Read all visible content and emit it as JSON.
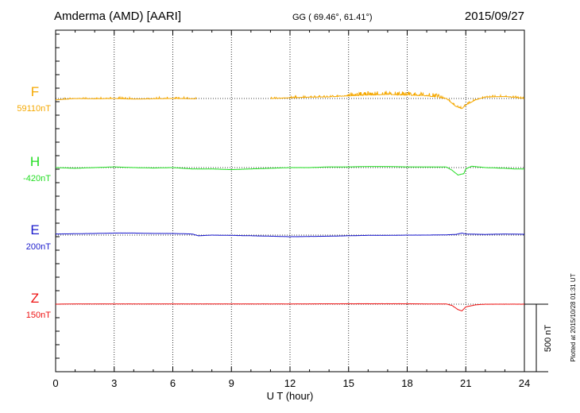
{
  "header": {
    "station": "Amderma (AMD)  [AARI]",
    "coords": "GG ( 69.46°,  61.41°)",
    "date": "2015/09/27"
  },
  "footer_note": "Plotted at 2015/10/28 01:31  UT",
  "scale_label": "500 nT",
  "colors": {
    "F": "#f5a800",
    "H": "#22dd22",
    "E": "#1a1acc",
    "Z": "#ee1111",
    "axis": "#000000"
  },
  "chart_data": {
    "type": "line",
    "xlabel": "U T (hour)",
    "xlim": [
      0,
      24
    ],
    "x_ticks": [
      0,
      3,
      6,
      9,
      12,
      15,
      18,
      21,
      24
    ],
    "x_tick_labels": [
      "0",
      "3",
      "6",
      "9",
      "12",
      "15",
      "18",
      "21",
      "24"
    ],
    "y_unit": "nT",
    "y_scale_bar_nT": 500,
    "series": [
      {
        "name": "F",
        "baseline_label": "59110nT",
        "baseline_nT": 59110,
        "gaps": [
          [
            7.2,
            11.0
          ]
        ],
        "points": [
          [
            0,
            -10
          ],
          [
            0.5,
            -5
          ],
          [
            1,
            0
          ],
          [
            2,
            -2
          ],
          [
            3,
            0
          ],
          [
            4,
            -4
          ],
          [
            5,
            -2
          ],
          [
            6,
            0
          ],
          [
            7.1,
            -2
          ],
          [
            11.0,
            0
          ],
          [
            12,
            5
          ],
          [
            13,
            10
          ],
          [
            14,
            12
          ],
          [
            15,
            20
          ],
          [
            16,
            25
          ],
          [
            17,
            30
          ],
          [
            18,
            25
          ],
          [
            19,
            20
          ],
          [
            20,
            0
          ],
          [
            20.5,
            -60
          ],
          [
            20.8,
            -75
          ],
          [
            21.0,
            -50
          ],
          [
            21.5,
            -10
          ],
          [
            22,
            10
          ],
          [
            23,
            15
          ],
          [
            24,
            0
          ]
        ]
      },
      {
        "name": "H",
        "baseline_label": "-420nT",
        "baseline_nT": -420,
        "gaps": [],
        "points": [
          [
            0,
            0
          ],
          [
            1,
            -5
          ],
          [
            2,
            0
          ],
          [
            3,
            5
          ],
          [
            4,
            0
          ],
          [
            5,
            -3
          ],
          [
            6,
            0
          ],
          [
            7,
            -10
          ],
          [
            8,
            -10
          ],
          [
            9,
            -15
          ],
          [
            10,
            -10
          ],
          [
            11,
            -5
          ],
          [
            12,
            0
          ],
          [
            13,
            0
          ],
          [
            14,
            5
          ],
          [
            15,
            5
          ],
          [
            16,
            8
          ],
          [
            17,
            8
          ],
          [
            18,
            5
          ],
          [
            19,
            5
          ],
          [
            20,
            5
          ],
          [
            20.3,
            -20
          ],
          [
            20.6,
            -55
          ],
          [
            20.9,
            -45
          ],
          [
            21.0,
            -10
          ],
          [
            21.3,
            10
          ],
          [
            22,
            0
          ],
          [
            23,
            -5
          ],
          [
            23.5,
            -10
          ],
          [
            24,
            -10
          ]
        ]
      },
      {
        "name": "E",
        "baseline_label": "200nT",
        "baseline_nT": 200,
        "gaps": [],
        "points": [
          [
            0,
            8
          ],
          [
            1,
            10
          ],
          [
            2,
            12
          ],
          [
            3,
            15
          ],
          [
            4,
            15
          ],
          [
            5,
            12
          ],
          [
            6,
            12
          ],
          [
            7,
            8
          ],
          [
            7.3,
            -5
          ],
          [
            8,
            0
          ],
          [
            9,
            -2
          ],
          [
            10,
            -5
          ],
          [
            11,
            -8
          ],
          [
            12,
            -12
          ],
          [
            13,
            -10
          ],
          [
            14,
            -8
          ],
          [
            15,
            -5
          ],
          [
            16,
            -2
          ],
          [
            17,
            -2
          ],
          [
            18,
            0
          ],
          [
            19,
            0
          ],
          [
            20,
            2
          ],
          [
            20.5,
            5
          ],
          [
            20.8,
            15
          ],
          [
            21,
            8
          ],
          [
            22,
            5
          ],
          [
            23,
            8
          ],
          [
            24,
            6
          ]
        ]
      },
      {
        "name": "Z",
        "baseline_label": "150nT",
        "baseline_nT": 150,
        "gaps": [],
        "points": [
          [
            0,
            0
          ],
          [
            1,
            2
          ],
          [
            2,
            2
          ],
          [
            3,
            2
          ],
          [
            6,
            2
          ],
          [
            9,
            2
          ],
          [
            12,
            2
          ],
          [
            15,
            3
          ],
          [
            18,
            3
          ],
          [
            19,
            2
          ],
          [
            20,
            2
          ],
          [
            20.3,
            -10
          ],
          [
            20.6,
            -40
          ],
          [
            20.8,
            -50
          ],
          [
            21.0,
            -20
          ],
          [
            21.5,
            -5
          ],
          [
            22,
            0
          ],
          [
            23,
            0
          ],
          [
            24,
            0
          ]
        ]
      }
    ]
  }
}
